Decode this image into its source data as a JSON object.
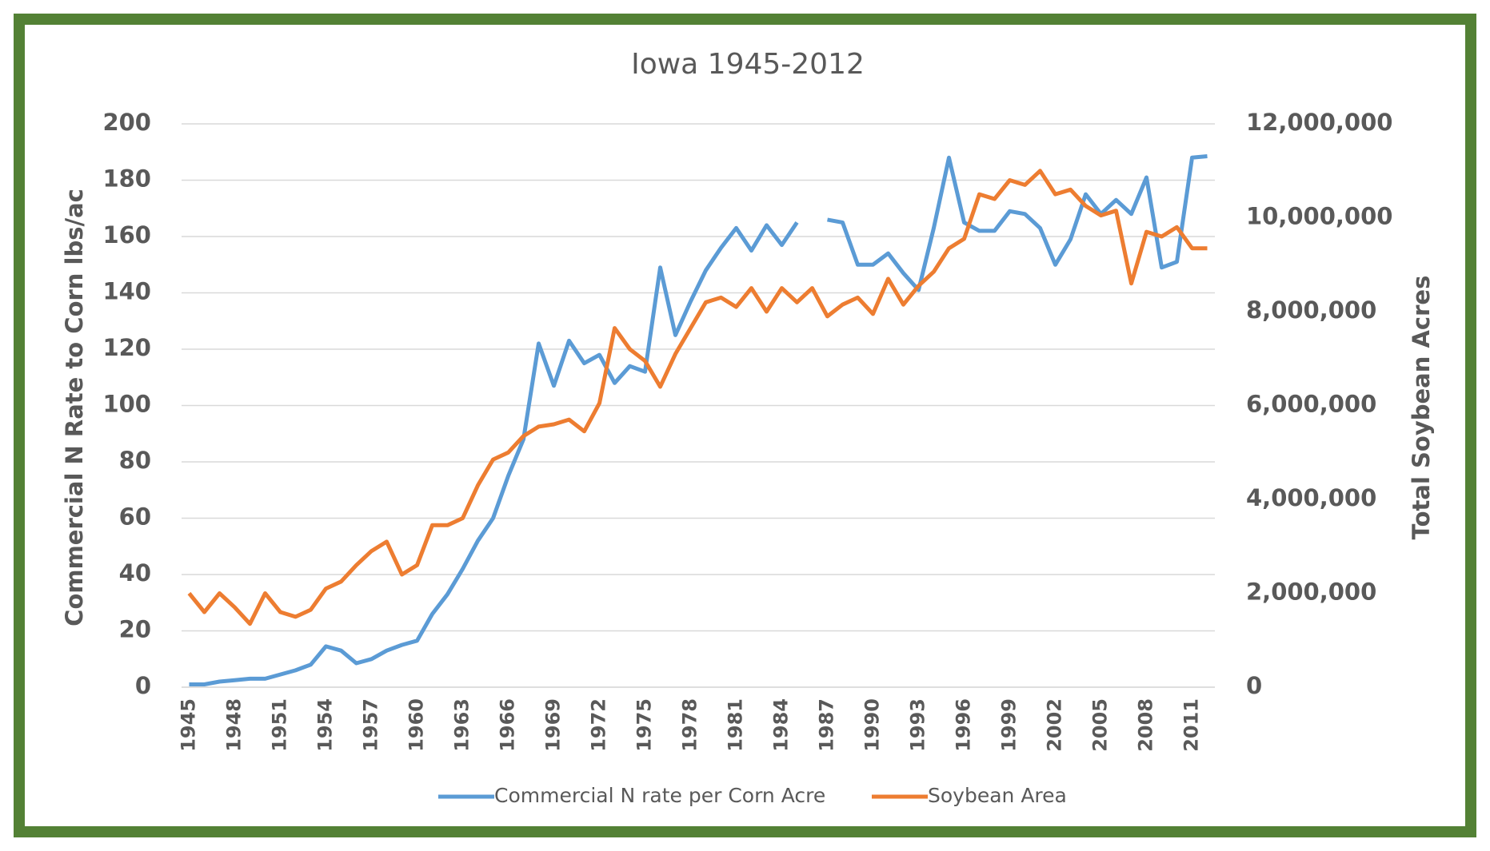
{
  "chart_data": {
    "type": "line",
    "title": "Iowa 1945-2012",
    "y_label": "Commercial N Rate to Corn lbs/ac",
    "y2_label": "Total Soybean Acres",
    "x": [
      1945,
      1946,
      1947,
      1948,
      1949,
      1950,
      1951,
      1952,
      1953,
      1954,
      1955,
      1956,
      1957,
      1958,
      1959,
      1960,
      1961,
      1962,
      1963,
      1964,
      1965,
      1966,
      1967,
      1968,
      1969,
      1970,
      1971,
      1972,
      1973,
      1974,
      1975,
      1976,
      1977,
      1978,
      1979,
      1980,
      1981,
      1982,
      1983,
      1984,
      1985,
      1986,
      1987,
      1988,
      1989,
      1990,
      1991,
      1992,
      1993,
      1994,
      1995,
      1996,
      1997,
      1998,
      1999,
      2000,
      2001,
      2002,
      2003,
      2004,
      2005,
      2006,
      2007,
      2008,
      2009,
      2010,
      2011,
      2012
    ],
    "xlim": [
      1944.5,
      2012.5
    ],
    "xticks": [
      1945,
      1948,
      1951,
      1954,
      1957,
      1960,
      1963,
      1966,
      1969,
      1972,
      1975,
      1978,
      1981,
      1984,
      1987,
      1990,
      1993,
      1996,
      1999,
      2002,
      2005,
      2008,
      2011
    ],
    "ylim": [
      0,
      200
    ],
    "yticks": [
      0,
      20,
      40,
      60,
      80,
      100,
      120,
      140,
      160,
      180,
      200
    ],
    "y2lim": [
      0,
      12000000
    ],
    "y2ticks": [
      0,
      {
        "value": 2000000,
        "label": "2,000,000"
      },
      {
        "value": 4000000,
        "label": "4,000,000"
      },
      {
        "value": 6000000,
        "label": "6,000,000"
      },
      {
        "value": 8000000,
        "label": "8,000,000"
      },
      {
        "value": 10000000,
        "label": "10,000,000"
      },
      {
        "value": 12000000,
        "label": "12,000,000"
      }
    ],
    "grid": true,
    "legend": "bottom",
    "series": [
      {
        "name": "Commercial N rate per Corn Acre",
        "color": "#5b9bd5",
        "values": [
          1,
          1,
          2,
          2.5,
          3,
          3,
          4.5,
          6,
          8,
          14.5,
          13,
          8.5,
          10,
          13,
          15,
          16.5,
          26,
          33,
          42,
          52,
          60,
          75,
          88,
          122,
          107,
          123,
          115,
          118,
          108,
          114,
          112,
          149,
          125,
          137,
          148,
          156,
          163,
          155,
          164,
          157,
          165,
          null,
          166,
          165,
          150,
          150,
          154,
          147,
          141,
          163,
          188,
          165,
          162,
          162,
          169,
          168,
          163,
          150,
          159,
          175,
          168,
          173,
          168,
          181,
          149,
          151,
          188,
          188.5
        ]
      },
      {
        "name": "Soybean Area",
        "color": "#ed7d31",
        "axis": "y2",
        "values": [
          2000000,
          1600000,
          2000000,
          1700000,
          1350000,
          2000000,
          1600000,
          1500000,
          1650000,
          2100000,
          2250000,
          2600000,
          2900000,
          3100000,
          2400000,
          2600000,
          3450000,
          3450000,
          3600000,
          4300000,
          4850000,
          5000000,
          5350000,
          5550000,
          5600000,
          5700000,
          5450000,
          6050000,
          7650000,
          7200000,
          6950000,
          6400000,
          7100000,
          7650000,
          8200000,
          8300000,
          8100000,
          8500000,
          8000000,
          8500000,
          8200000,
          8500000,
          7900000,
          8150000,
          8300000,
          7950000,
          8700000,
          8150000,
          8550000,
          8850000,
          9350000,
          9550000,
          10500000,
          10400000,
          10800000,
          10700000,
          11000000,
          10500000,
          10600000,
          10250000,
          10050000,
          10150000,
          8600000,
          9700000,
          9600000,
          9800000,
          9350000,
          9350000
        ]
      }
    ]
  }
}
